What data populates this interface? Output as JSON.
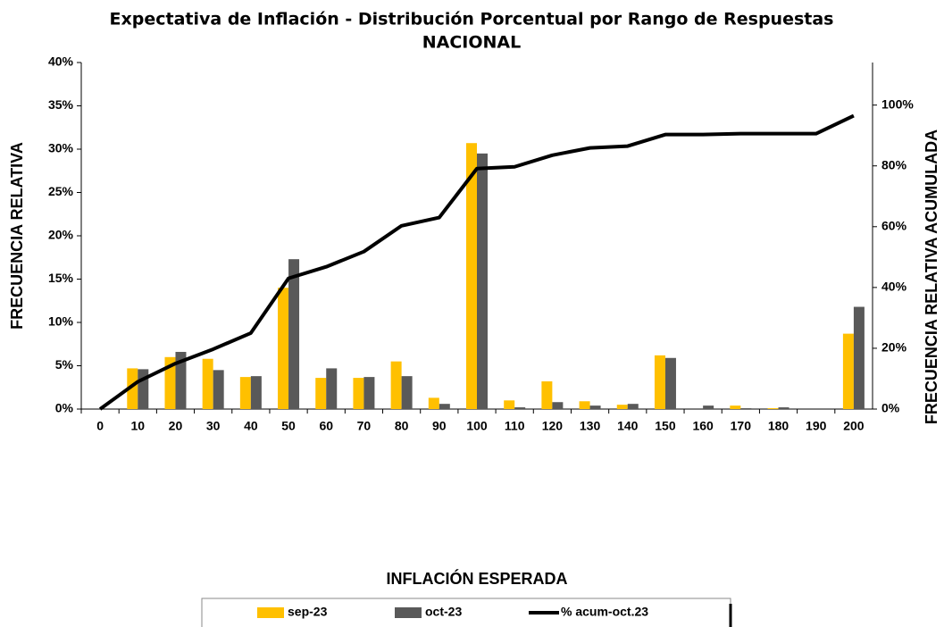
{
  "chart_data": {
    "type": "bar-line",
    "title": "Expectativa de Inflación - Distribución Porcentual por Rango de Respuestas",
    "subtitle": "NACIONAL",
    "x_label": "INFLACIÓN ESPERADA",
    "y_label": "FRECUENCIA RELATIVA",
    "y2_label": "FRECUENCIA RELATIVA ACUMULADA",
    "categories": [
      "0",
      "10",
      "20",
      "30",
      "40",
      "50",
      "60",
      "70",
      "80",
      "90",
      "100",
      "110",
      "120",
      "130",
      "140",
      "150",
      "160",
      "170",
      "180",
      "190",
      "200"
    ],
    "series": [
      {
        "name": "sep-23",
        "type": "bar",
        "color": "#FFC000",
        "values": [
          0,
          4.7,
          6.0,
          5.8,
          3.7,
          14.0,
          3.6,
          3.6,
          5.5,
          1.3,
          30.7,
          1.0,
          3.2,
          0.9,
          0.5,
          6.2,
          0,
          0.4,
          0.1,
          0,
          8.7
        ]
      },
      {
        "name": "oct-23",
        "type": "bar",
        "color": "#595959",
        "values": [
          0,
          4.6,
          6.6,
          4.5,
          3.8,
          17.3,
          4.7,
          3.7,
          3.8,
          0.6,
          29.5,
          0.2,
          0.8,
          0.4,
          0.6,
          5.9,
          0.4,
          0.1,
          0.2,
          0,
          11.8
        ]
      },
      {
        "name": "% acum-oct.23",
        "type": "line",
        "axis": "y2",
        "color": "#000000",
        "values": [
          0,
          9,
          15,
          19.7,
          25,
          43,
          46.8,
          51.8,
          60.3,
          63,
          79.1,
          79.7,
          83.5,
          85.9,
          86.5,
          90.3,
          90.3,
          90.6,
          90.6,
          90.6,
          96.5
        ]
      }
    ],
    "ylim": [
      0,
      40
    ],
    "yticks": [
      {
        "value": 0,
        "label": "0%"
      },
      {
        "value": 5,
        "label": "5%"
      },
      {
        "value": 10,
        "label": "10%"
      },
      {
        "value": 15,
        "label": "15%"
      },
      {
        "value": 20,
        "label": "20%"
      },
      {
        "value": 25,
        "label": "25%"
      },
      {
        "value": 30,
        "label": "30%"
      },
      {
        "value": 35,
        "label": "35%"
      },
      {
        "value": 40,
        "label": "40%"
      }
    ],
    "y2lim": [
      0,
      114
    ],
    "y2ticks": [
      {
        "value": 0,
        "label": "0%"
      },
      {
        "value": 20,
        "label": "20%"
      },
      {
        "value": 40,
        "label": "40%"
      },
      {
        "value": 60,
        "label": "60%"
      },
      {
        "value": 80,
        "label": "80%"
      },
      {
        "value": 100,
        "label": "100%"
      }
    ],
    "legend": "bottom"
  }
}
